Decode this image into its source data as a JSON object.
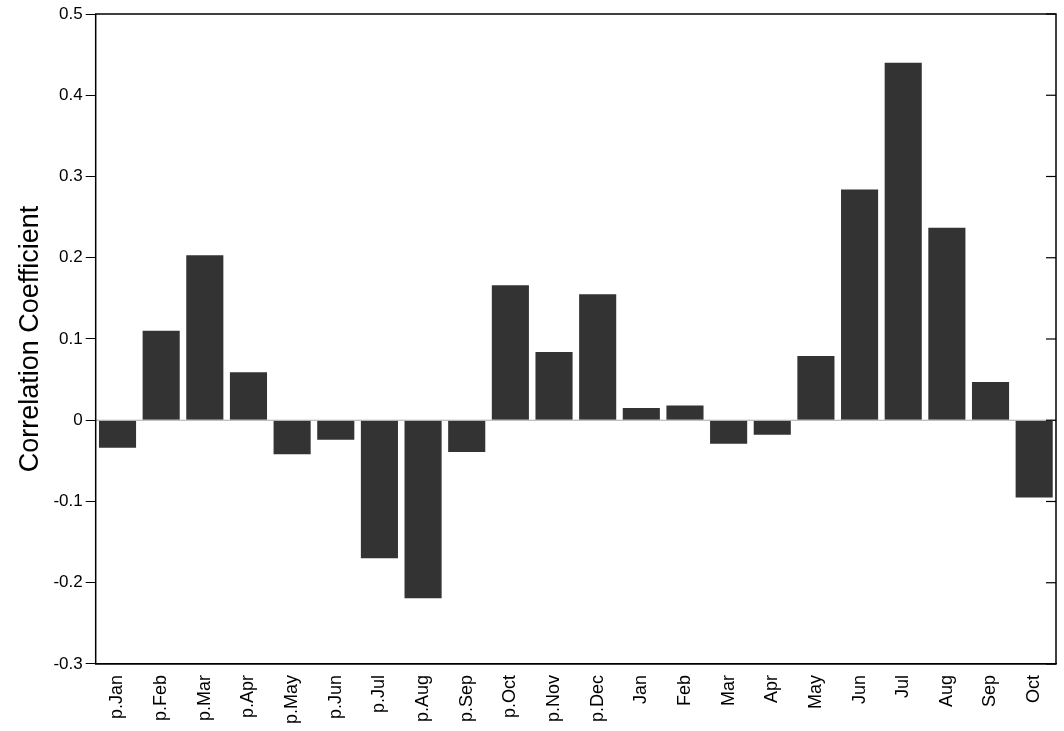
{
  "chart_data": {
    "type": "bar",
    "ylabel": "Correlation Coefficient",
    "categories": [
      "p.Jan",
      "p.Feb",
      "p.Mar",
      "p.Apr",
      "p.May",
      "p.Jun",
      "p.Jul",
      "p.Aug",
      "p.Sep",
      "p.Oct",
      "p.Nov",
      "p.Dec",
      "Jan",
      "Feb",
      "Mar",
      "Apr",
      "May",
      "Jun",
      "Jul",
      "Aug",
      "Sep",
      "Oct"
    ],
    "values": [
      -0.034,
      0.11,
      0.203,
      0.059,
      -0.042,
      -0.024,
      -0.17,
      -0.219,
      -0.039,
      0.166,
      0.084,
      0.155,
      0.015,
      0.018,
      -0.029,
      -0.018,
      0.079,
      0.284,
      0.44,
      0.237,
      0.047,
      -0.095
    ],
    "color": "#333333",
    "ylim": [
      -0.3,
      0.5
    ],
    "yticks": [
      {
        "value": -0.3,
        "label": "-0.3"
      },
      {
        "value": -0.2,
        "label": "-0.2"
      },
      {
        "value": -0.1,
        "label": "-0.1"
      },
      0,
      0.1,
      0.2,
      0.3,
      0.4,
      0.5
    ],
    "ref_lines": [
      {
        "axis": "y",
        "value": 0,
        "color": "#aaaaaa"
      }
    ],
    "grid": false,
    "legend": false
  }
}
